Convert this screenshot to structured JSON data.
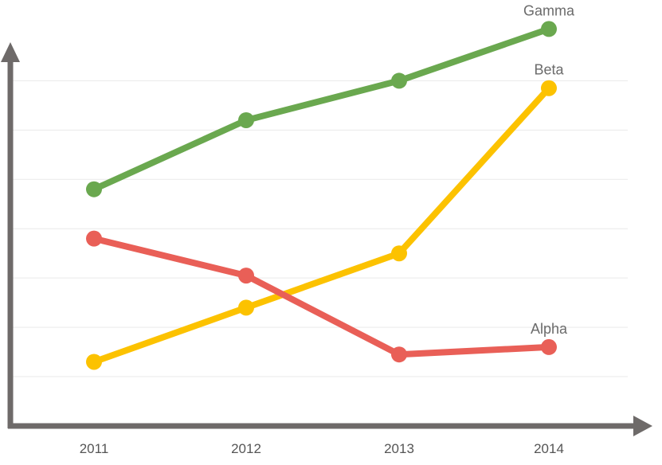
{
  "chart_data": {
    "type": "line",
    "x": [
      "2011",
      "2012",
      "2013",
      "2014"
    ],
    "series": [
      {
        "name": "Gamma",
        "values": [
          48,
          62,
          70,
          80.5
        ],
        "color": "#6aa84f"
      },
      {
        "name": "Beta",
        "values": [
          13,
          24,
          35,
          68.5
        ],
        "color": "#fcc200"
      },
      {
        "name": "Alpha",
        "values": [
          38,
          30.5,
          14.5,
          16
        ],
        "color": "#e95f57"
      }
    ],
    "ylim": [
      0,
      80
    ],
    "grid": true,
    "legend": "inline-end-labels",
    "axis_color": "#6e6a69",
    "grid_color": "#e9e9e9"
  }
}
